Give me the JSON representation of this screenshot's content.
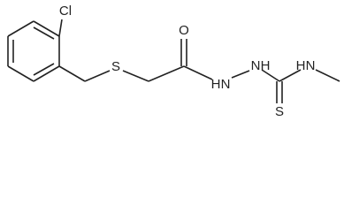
{
  "atoms": [
    {
      "label": "Cl"
    },
    {
      "label": "S"
    },
    {
      "label": "O"
    },
    {
      "label": "H"
    },
    {
      "label": "N"
    },
    {
      "label": "N"
    },
    {
      "label": "H"
    },
    {
      "label": "S"
    },
    {
      "label": "H"
    },
    {
      "label": "N"
    }
  ]
}
